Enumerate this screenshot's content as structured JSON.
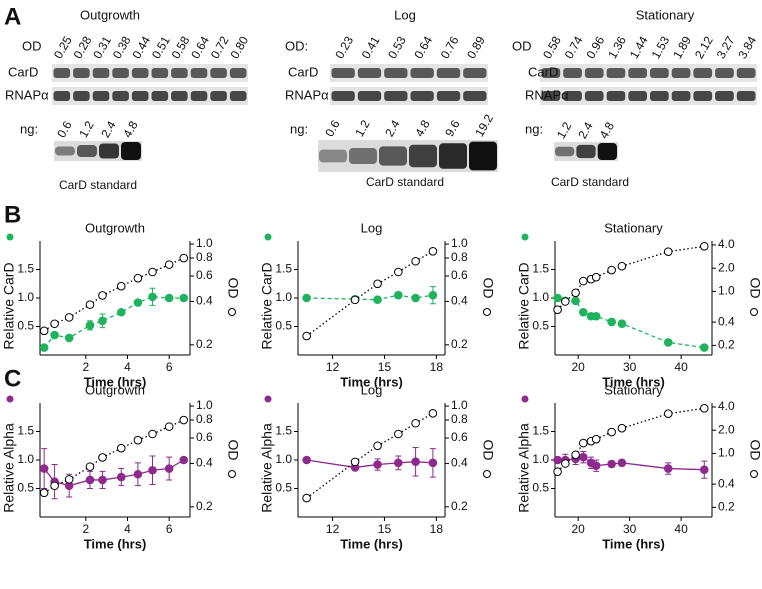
{
  "panel_labels": [
    "A",
    "B",
    "C"
  ],
  "blots": [
    {
      "title": "Outgrowth",
      "od_label": "OD",
      "od_values": [
        "0.25",
        "0.28",
        "0.31",
        "0.38",
        "0.44",
        "0.51",
        "0.58",
        "0.64",
        "0.72",
        "0.80"
      ],
      "row_labels": [
        "CarD",
        "RNAPα"
      ],
      "ng_label": "ng:",
      "ng_values": [
        "0.6",
        "1.2",
        "2.4",
        "4.8"
      ],
      "standard_label": "CarD standard"
    },
    {
      "title": "Log",
      "od_label": "OD:",
      "od_values": [
        "0.23",
        "0.41",
        "0.53",
        "0.64",
        "0.76",
        "0.89"
      ],
      "row_labels": [
        "CarD",
        "RNAPα"
      ],
      "ng_label": "ng:",
      "ng_values": [
        "0.6",
        "1.2",
        "2.4",
        "4.8",
        "9.6",
        "19.2"
      ],
      "standard_label": "CarD standard"
    },
    {
      "title": "Stationary",
      "od_label": "OD",
      "od_values": [
        "0.58",
        "0.74",
        "0.96",
        "1.36",
        "1.44",
        "1.53",
        "1.89",
        "2.12",
        "3.27",
        "3.84"
      ],
      "row_labels": [
        "CarD",
        "RNAPα"
      ],
      "ng_label": "ng:",
      "ng_values": [
        "1.2",
        "2.4",
        "4.8"
      ],
      "standard_label": "CarD standard"
    }
  ],
  "chart_data": [
    {
      "type": "line",
      "title": "Outgrowth",
      "xlabel": "Time (hrs)",
      "x": [
        0,
        0.5,
        1.2,
        2.2,
        2.8,
        3.7,
        4.5,
        5.2,
        6,
        6.7
      ],
      "xlim": [
        -0.2,
        7
      ],
      "xticks": [
        2,
        4,
        6
      ],
      "ylim": [
        0,
        2
      ],
      "yticks": [
        0.5,
        {
          "value": 1,
          "label": "1.0"
        },
        1.5
      ],
      "y2lim": [
        0.17,
        1.05
      ],
      "y2log": true,
      "y2ticks": [
        0.2,
        0.4,
        0.6,
        0.8,
        {
          "value": 1,
          "label": "1.0"
        }
      ],
      "series": [
        {
          "name": "Relative CarD",
          "color": "#1fb35e",
          "marker": "filled",
          "linestyle": "dashed",
          "values": [
            0.13,
            0.35,
            0.3,
            0.52,
            0.6,
            0.75,
            0.92,
            1.02,
            1.0,
            1.0
          ],
          "errors": [
            0,
            0,
            0,
            0.08,
            0.12,
            0,
            0,
            0.15,
            0,
            0
          ]
        },
        {
          "name": "OD",
          "color": "#000000",
          "label_color": "#f7941d",
          "axis": "y2",
          "marker": "open",
          "linestyle": "dotted",
          "values": [
            0.25,
            0.28,
            0.31,
            0.38,
            0.44,
            0.51,
            0.58,
            0.64,
            0.72,
            0.8
          ]
        }
      ]
    },
    {
      "type": "line",
      "title": "Log",
      "xlabel": "Time (hrs)",
      "x": [
        10.5,
        13.3,
        14.6,
        15.8,
        16.8,
        17.8
      ],
      "xlim": [
        10,
        18.5
      ],
      "xticks": [
        12,
        15,
        18
      ],
      "ylim": [
        0,
        2
      ],
      "yticks": [
        0.5,
        {
          "value": 1,
          "label": "1.0"
        },
        1.5
      ],
      "y2lim": [
        0.17,
        1.05
      ],
      "y2log": true,
      "y2ticks": [
        0.2,
        0.4,
        0.6,
        0.8,
        {
          "value": 1,
          "label": "1.0"
        }
      ],
      "series": [
        {
          "name": "Relative CarD",
          "color": "#1fb35e",
          "marker": "filled",
          "linestyle": "dashed",
          "values": [
            1.0,
            0.98,
            0.97,
            1.05,
            1.0,
            1.05
          ],
          "errors": [
            0,
            0.03,
            0.05,
            0.05,
            0.05,
            0.15
          ]
        },
        {
          "name": "OD",
          "color": "#000000",
          "label_color": "#f7941d",
          "axis": "y2",
          "marker": "open",
          "linestyle": "dotted",
          "values": [
            0.23,
            0.41,
            0.53,
            0.64,
            0.76,
            0.89
          ]
        }
      ]
    },
    {
      "type": "line",
      "title": "Stationary",
      "xlabel": "Time (hrs)",
      "x": [
        16,
        17.5,
        19.5,
        21,
        22.5,
        23.5,
        26.5,
        28.5,
        37.5,
        44.5
      ],
      "xlim": [
        15.5,
        46
      ],
      "xticks": [
        20,
        30,
        40
      ],
      "ylim": [
        0,
        2
      ],
      "yticks": [
        0.5,
        {
          "value": 1,
          "label": "1.0"
        },
        1.5
      ],
      "y2lim": [
        0.15,
        4.5
      ],
      "y2log": true,
      "y2ticks": [
        0.2,
        0.4,
        {
          "value": 1,
          "label": "1.0"
        },
        {
          "value": 2,
          "label": "2.0"
        },
        {
          "value": 4,
          "label": "4.0"
        }
      ],
      "series": [
        {
          "name": "Relative CarD",
          "color": "#1fb35e",
          "marker": "filled",
          "linestyle": "dashed",
          "values": [
            1.0,
            0.95,
            0.95,
            0.75,
            0.68,
            0.68,
            0.58,
            0.55,
            0.22,
            0.13
          ],
          "errors": [
            0.05,
            0.05,
            0.05,
            0.05,
            0.05,
            0.05,
            0.05,
            0.05,
            0,
            0
          ]
        },
        {
          "name": "OD",
          "color": "#000000",
          "label_color": "#f7941d",
          "axis": "y2",
          "marker": "open",
          "linestyle": "dotted",
          "values": [
            0.58,
            0.74,
            0.96,
            1.36,
            1.44,
            1.53,
            1.89,
            2.12,
            3.27,
            3.84
          ]
        }
      ]
    },
    {
      "type": "line",
      "title": "Outgrowth",
      "xlabel": "Time (hrs)",
      "x": [
        0,
        0.5,
        1.2,
        2.2,
        2.8,
        3.7,
        4.5,
        5.2,
        6,
        6.7
      ],
      "xlim": [
        -0.2,
        7
      ],
      "xticks": [
        2,
        4,
        6
      ],
      "ylim": [
        0,
        2
      ],
      "yticks": [
        0.5,
        {
          "value": 1,
          "label": "1.0"
        },
        1.5
      ],
      "y2lim": [
        0.17,
        1.05
      ],
      "y2log": true,
      "y2ticks": [
        0.2,
        0.4,
        0.6,
        0.8,
        {
          "value": 1,
          "label": "1.0"
        }
      ],
      "series": [
        {
          "name": "Relative Alpha",
          "color": "#8e2a8e",
          "marker": "filled",
          "linestyle": "solid",
          "values": [
            0.85,
            0.62,
            0.55,
            0.65,
            0.65,
            0.7,
            0.75,
            0.82,
            0.85,
            1.0
          ],
          "errors": [
            0.35,
            0.3,
            0.2,
            0.15,
            0.15,
            0.15,
            0.2,
            0.25,
            0.2,
            0
          ]
        },
        {
          "name": "OD",
          "color": "#000000",
          "label_color": "#f7941d",
          "axis": "y2",
          "marker": "open",
          "linestyle": "dotted",
          "values": [
            0.25,
            0.28,
            0.31,
            0.38,
            0.44,
            0.51,
            0.58,
            0.64,
            0.72,
            0.8
          ]
        }
      ]
    },
    {
      "type": "line",
      "title": "Log",
      "xlabel": "Time (hrs)",
      "x": [
        10.5,
        13.3,
        14.6,
        15.8,
        16.8,
        17.8
      ],
      "xlim": [
        10,
        18.5
      ],
      "xticks": [
        12,
        15,
        18
      ],
      "ylim": [
        0,
        2
      ],
      "yticks": [
        0.5,
        {
          "value": 1,
          "label": "1.0"
        },
        1.5
      ],
      "y2lim": [
        0.17,
        1.05
      ],
      "y2log": true,
      "y2ticks": [
        0.2,
        0.4,
        0.6,
        0.8,
        {
          "value": 1,
          "label": "1.0"
        }
      ],
      "series": [
        {
          "name": "Relative Alpha",
          "color": "#8e2a8e",
          "marker": "filled",
          "linestyle": "solid",
          "values": [
            1.0,
            0.87,
            0.92,
            0.95,
            0.97,
            0.95
          ],
          "errors": [
            0,
            0.05,
            0.1,
            0.12,
            0.25,
            0.25
          ]
        },
        {
          "name": "OD",
          "color": "#000000",
          "label_color": "#f7941d",
          "axis": "y2",
          "marker": "open",
          "linestyle": "dotted",
          "values": [
            0.23,
            0.41,
            0.53,
            0.64,
            0.76,
            0.89
          ]
        }
      ]
    },
    {
      "type": "line",
      "title": "Stationary",
      "xlabel": "Time (hrs)",
      "x": [
        16,
        17.5,
        19.5,
        21,
        22.5,
        23.5,
        26.5,
        28.5,
        37.5,
        44.5
      ],
      "xlim": [
        15.5,
        46
      ],
      "xticks": [
        20,
        30,
        40
      ],
      "ylim": [
        0,
        2
      ],
      "yticks": [
        0.5,
        {
          "value": 1,
          "label": "1.0"
        },
        1.5
      ],
      "y2lim": [
        0.15,
        4.5
      ],
      "y2log": true,
      "y2ticks": [
        0.2,
        0.4,
        {
          "value": 1,
          "label": "1.0"
        },
        {
          "value": 2,
          "label": "2.0"
        },
        {
          "value": 4,
          "label": "4.0"
        }
      ],
      "series": [
        {
          "name": "Relative Alpha",
          "color": "#8e2a8e",
          "marker": "filled",
          "linestyle": "solid",
          "values": [
            1.0,
            1.0,
            1.02,
            1.05,
            0.95,
            0.9,
            0.93,
            0.95,
            0.85,
            0.83
          ],
          "errors": [
            0.05,
            0.1,
            0.1,
            0.1,
            0.1,
            0.1,
            0.05,
            0.05,
            0.1,
            0.15
          ]
        },
        {
          "name": "OD",
          "color": "#000000",
          "label_color": "#f7941d",
          "axis": "y2",
          "marker": "open",
          "linestyle": "dotted",
          "values": [
            0.58,
            0.74,
            0.96,
            1.36,
            1.44,
            1.53,
            1.89,
            2.12,
            3.27,
            3.84
          ]
        }
      ]
    }
  ]
}
